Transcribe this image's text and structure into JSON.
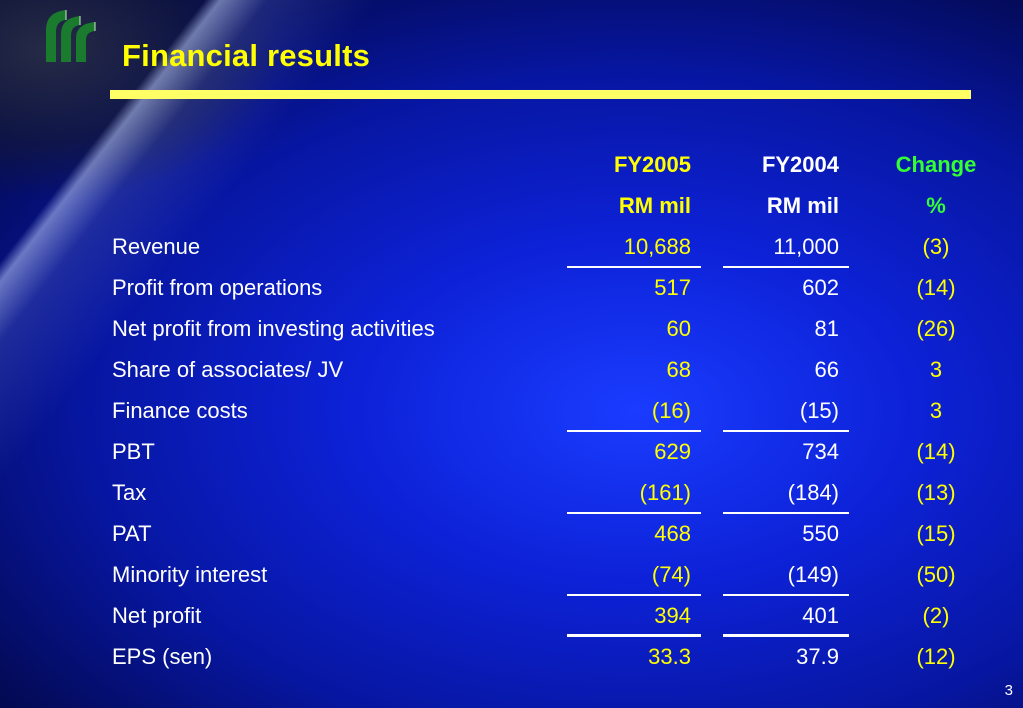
{
  "slide": {
    "title": "Financial results",
    "page_number": "3"
  },
  "table": {
    "headers": {
      "fy2005": "FY2005",
      "fy2004": "FY2004",
      "change": "Change",
      "fy2005_unit": "RM mil",
      "fy2004_unit": "RM mil",
      "change_unit": "%"
    },
    "rows": [
      {
        "label": "Revenue",
        "fy2005": "10,688",
        "fy2004": "11,000",
        "change": "(3)"
      },
      {
        "label": "Profit from operations",
        "fy2005": "517",
        "fy2004": "602",
        "change": "(14)"
      },
      {
        "label": "Net profit from investing activities",
        "fy2005": "60",
        "fy2004": "81",
        "change": "(26)"
      },
      {
        "label": "Share of associates/ JV",
        "fy2005": "68",
        "fy2004": "66",
        "change": "3"
      },
      {
        "label": "Finance costs",
        "fy2005": "(16)",
        "fy2004": "(15)",
        "change": "3"
      },
      {
        "label": "PBT",
        "fy2005": "629",
        "fy2004": "734",
        "change": "(14)"
      },
      {
        "label": "Tax",
        "fy2005": "(161)",
        "fy2004": "(184)",
        "change": "(13)"
      },
      {
        "label": "PAT",
        "fy2005": "468",
        "fy2004": "550",
        "change": "(15)"
      },
      {
        "label": "Minority interest",
        "fy2005": "(74)",
        "fy2004": "(149)",
        "change": "(50)"
      },
      {
        "label": "Net profit",
        "fy2005": "394",
        "fy2004": "401",
        "change": "(2)"
      },
      {
        "label": "EPS (sen)",
        "fy2005": "33.3",
        "fy2004": "37.9",
        "change": "(12)"
      }
    ]
  },
  "colors": {
    "title": "#ffff00",
    "fy2005_values": "#ffff00",
    "change_header": "#33ff33",
    "logo_green": "#1a7a2e"
  },
  "icons": {
    "logo": "company-logo-green-arcs"
  }
}
